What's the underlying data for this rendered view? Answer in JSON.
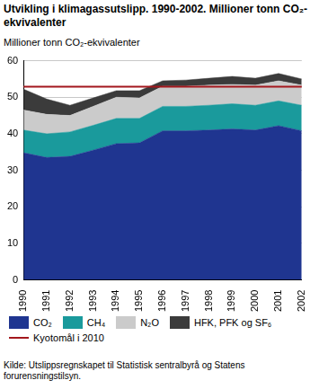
{
  "chart_data": {
    "type": "area",
    "title": "Utvikling i klimagassutslipp. 1990-2002. Millioner tonn CO₂-ekvivalenter",
    "y_label": "Millioner tonn CO₂-ekvivalenter",
    "source": "Kilde: Utslippsregnskapet til Statistisk sentralbyrå og Statens forurensningstilsyn.",
    "categories": [
      "1990",
      "1991",
      "1992",
      "1993",
      "1994",
      "1995",
      "1996",
      "1997",
      "1998",
      "1999",
      "2000",
      "2001",
      "2002"
    ],
    "stacked": true,
    "grid": true,
    "legend": "bottom",
    "ylim": [
      0,
      60
    ],
    "yticks": [
      0,
      10,
      20,
      30,
      40,
      50,
      60
    ],
    "series": [
      {
        "name": "CO₂",
        "color": "#1f3590",
        "type": "area",
        "values": [
          34.8,
          33.5,
          33.8,
          35.5,
          37.3,
          37.5,
          40.8,
          40.8,
          41.0,
          41.3,
          41.0,
          42.2,
          40.8
        ]
      },
      {
        "name": "CH₄",
        "color": "#1a9a9c",
        "type": "area",
        "values": [
          6.2,
          6.5,
          6.7,
          6.8,
          6.9,
          6.7,
          6.7,
          6.7,
          6.8,
          6.9,
          6.8,
          6.8,
          7.0
        ]
      },
      {
        "name": "N₂O",
        "color": "#cbcbcb",
        "type": "area",
        "values": [
          5.5,
          5.3,
          4.5,
          5.2,
          5.8,
          5.6,
          5.5,
          5.5,
          5.5,
          5.3,
          5.5,
          5.5,
          5.5
        ]
      },
      {
        "name": "HFK, PFK og SF₆",
        "color": "#3b3b3b",
        "type": "area",
        "values": [
          5.7,
          4.2,
          2.8,
          2.3,
          1.8,
          2.0,
          1.5,
          1.7,
          1.9,
          2.2,
          1.9,
          2.0,
          1.7
        ]
      },
      {
        "name": "Kyotomål i 2010",
        "color": "#a3171d",
        "type": "line",
        "values": [
          52.9,
          52.9,
          52.9,
          52.9,
          52.9,
          52.9,
          52.9,
          52.9,
          52.9,
          52.9,
          52.9,
          52.9,
          52.9
        ]
      }
    ]
  }
}
